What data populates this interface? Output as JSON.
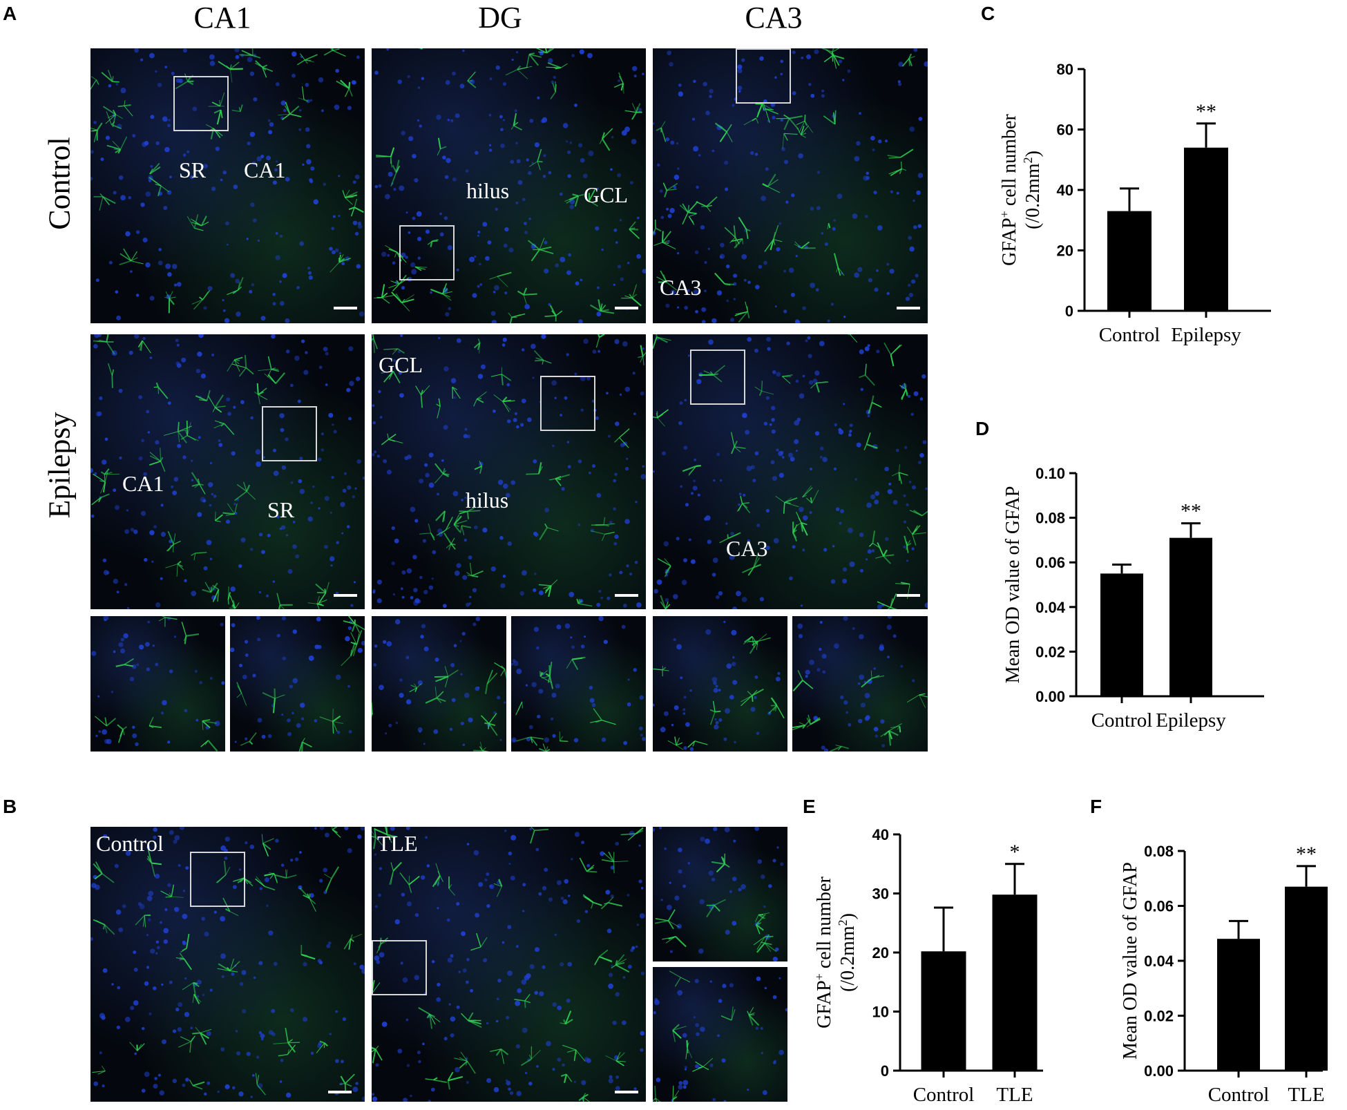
{
  "panel_letters": {
    "a": "A",
    "b": "B",
    "c": "C",
    "d": "D",
    "e": "E",
    "f": "F"
  },
  "panel_a": {
    "columns": [
      "CA1",
      "DG",
      "CA3"
    ],
    "rows": [
      "Control",
      "Epilepsy"
    ],
    "labels": {
      "ctrl_ca1_sr": "SR",
      "ctrl_ca1_ca1": "CA1",
      "ctrl_dg_hilus": "hilus",
      "ctrl_dg_gcl": "GCL",
      "ctrl_ca3_ca3": "CA3",
      "epi_ca1_ca1": "CA1",
      "epi_ca1_sr": "SR",
      "epi_dg_gcl": "GCL",
      "epi_dg_hilus": "hilus",
      "epi_ca3_ca3": "CA3"
    }
  },
  "panel_b": {
    "labels": {
      "control": "Control",
      "tle": "TLE"
    }
  },
  "colors": {
    "nuclei": "#1f3fd0",
    "gfap": "#2fcf52",
    "background": "#04070d",
    "bar": "#000000"
  },
  "chart_data": [
    {
      "id": "C",
      "type": "bar",
      "categories": [
        "Control",
        "Epilepsy"
      ],
      "values": [
        33,
        54
      ],
      "errors": [
        7.5,
        8
      ],
      "significance": [
        "",
        "**"
      ],
      "ylabel_main": "GFAP",
      "ylabel_sup": "+",
      "ylabel_rest": " cell number",
      "ylabel_unit": "(/0.2mm",
      "ylabel_unit_sup": "2",
      "ylabel_unit_end": ")",
      "ylim": [
        0,
        80
      ],
      "yticks": [
        "0",
        "20",
        "40",
        "60",
        "80"
      ]
    },
    {
      "id": "D",
      "type": "bar",
      "categories": [
        "Control",
        "Epilepsy"
      ],
      "values": [
        0.055,
        0.071
      ],
      "errors": [
        0.004,
        0.0065
      ],
      "significance": [
        "",
        "**"
      ],
      "ylabel": "Mean OD value of GFAP",
      "ylim": [
        0,
        0.1
      ],
      "yticks": [
        "0.00",
        "0.02",
        "0.04",
        "0.06",
        "0.08",
        "0.10"
      ]
    },
    {
      "id": "E",
      "type": "bar",
      "categories": [
        "Control",
        "TLE"
      ],
      "values": [
        20.2,
        29.8
      ],
      "errors": [
        7.4,
        5.2
      ],
      "significance": [
        "",
        "*"
      ],
      "ylabel_main": "GFAP",
      "ylabel_sup": "+",
      "ylabel_rest": " cell number",
      "ylabel_unit": "(/0.2mm",
      "ylabel_unit_sup": "2",
      "ylabel_unit_end": ")",
      "ylim": [
        0,
        40
      ],
      "yticks": [
        "0",
        "10",
        "20",
        "30",
        "40"
      ]
    },
    {
      "id": "F",
      "type": "bar",
      "categories": [
        "Control",
        "TLE"
      ],
      "values": [
        0.048,
        0.067
      ],
      "errors": [
        0.0065,
        0.0075
      ],
      "significance": [
        "",
        "**"
      ],
      "ylabel": "Mean OD value of GFAP",
      "ylim": [
        0,
        0.08
      ],
      "yticks": [
        "0.00",
        "0.02",
        "0.04",
        "0.06",
        "0.08"
      ]
    }
  ]
}
